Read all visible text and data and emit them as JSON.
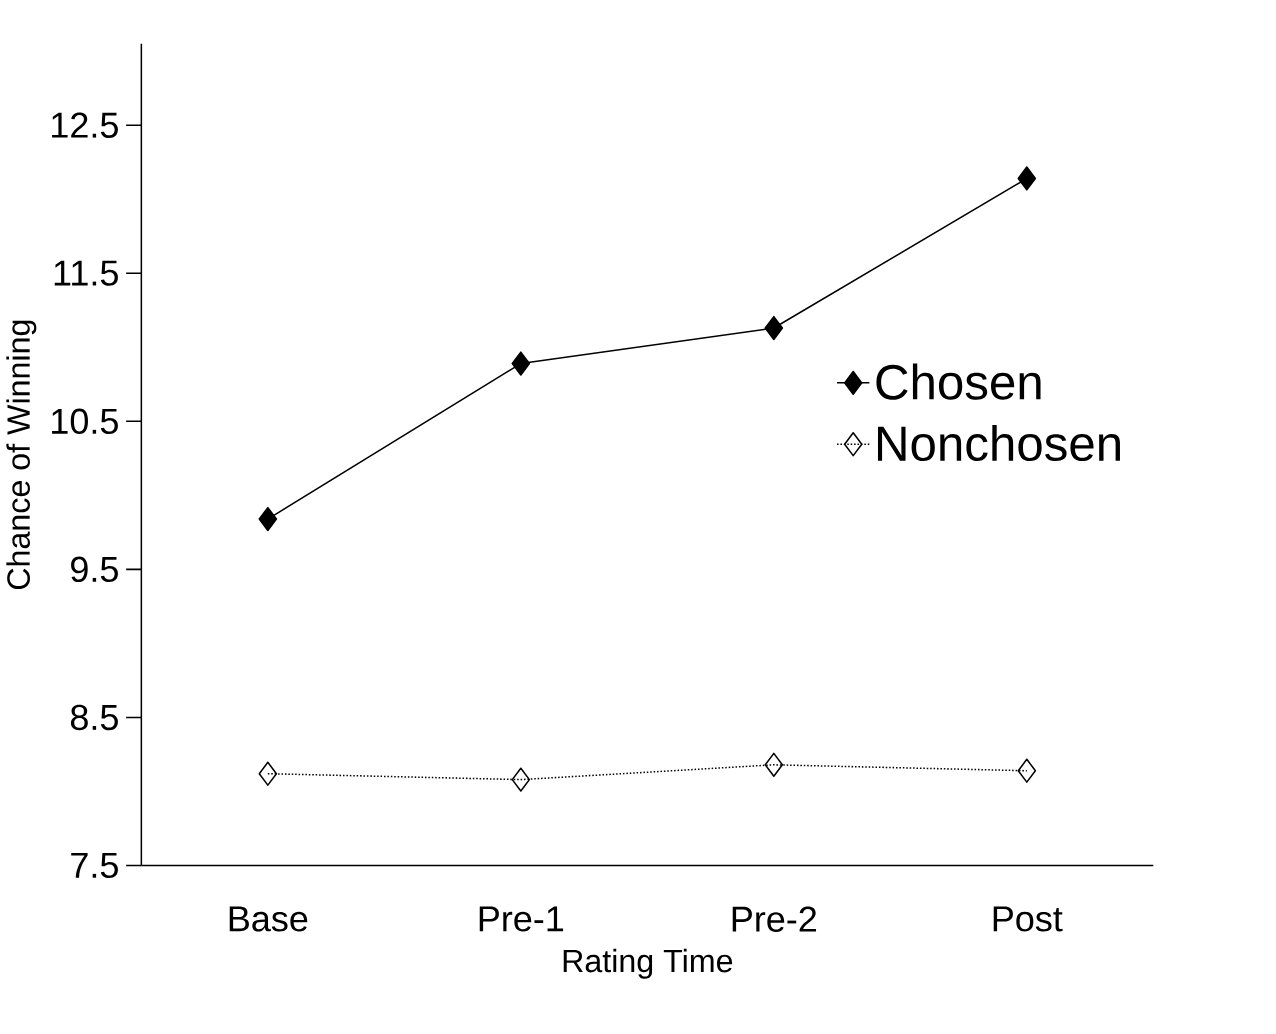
{
  "chart_data": {
    "type": "line",
    "xlabel": "Rating Time",
    "ylabel": "Chance of Winning",
    "categories": [
      "Base",
      "Pre-1",
      "Pre-2",
      "Post"
    ],
    "series": [
      {
        "name": "Chosen",
        "color": "#000000",
        "values": [
          9.84,
          10.89,
          11.13,
          12.14
        ],
        "line_style": "solid"
      },
      {
        "name": "Nonchosen",
        "color": "#000000",
        "values": [
          8.12,
          8.08,
          8.18,
          8.14
        ],
        "line_style": "dotted"
      }
    ],
    "ylim": [
      7.5,
      13.05
    ],
    "yticks": [
      7.5,
      8.5,
      9.5,
      10.5,
      11.5,
      12.5
    ],
    "marker": "diamond",
    "legend": "right",
    "grid": false
  }
}
